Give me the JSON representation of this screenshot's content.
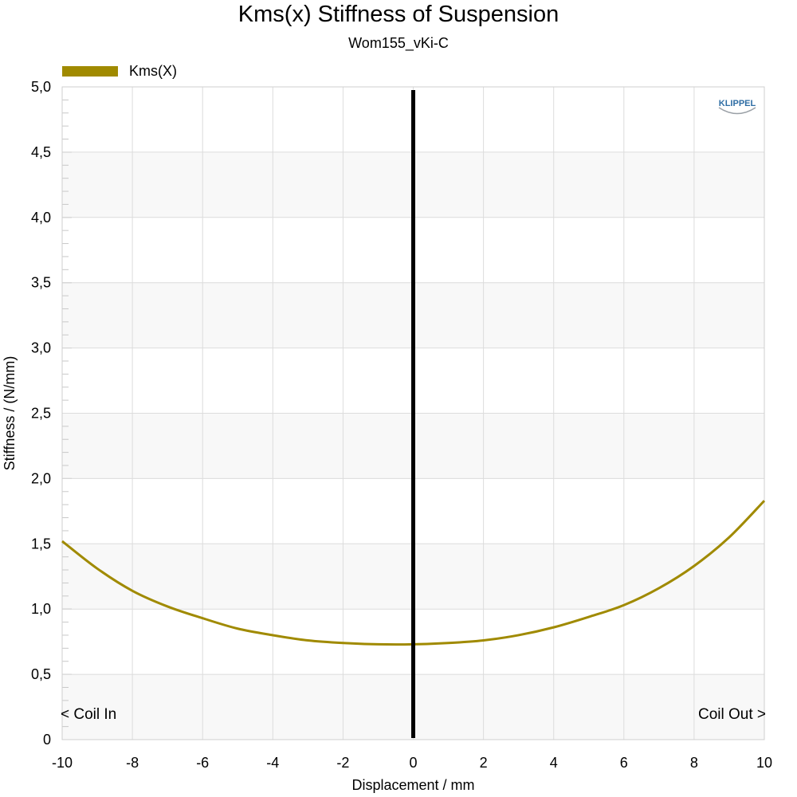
{
  "chart_data": {
    "type": "line",
    "title": "Kms(x) Stiffness of Suspension",
    "subtitle": "Wom155_vKi-C",
    "xlabel": "Displacement / mm",
    "ylabel": "Stiffness / (N/mm)",
    "xlim": [
      -10,
      10
    ],
    "ylim": [
      0,
      5
    ],
    "x_ticks": [
      -10,
      -8,
      -6,
      -4,
      -2,
      0,
      2,
      4,
      6,
      8,
      10
    ],
    "y_ticks": [
      "0",
      "0,5",
      "1,0",
      "1,5",
      "2,0",
      "2,5",
      "3,0",
      "3,5",
      "4,0",
      "4,5",
      "5,0"
    ],
    "grid": true,
    "legend_position": "top-left",
    "series": [
      {
        "name": "Kms(X)",
        "color": "#a08a00",
        "x": [
          -10,
          -9,
          -8,
          -7,
          -6,
          -5,
          -4,
          -3,
          -2,
          -1,
          0,
          1,
          2,
          3,
          4,
          5,
          6,
          7,
          8,
          9,
          10
        ],
        "y": [
          1.52,
          1.31,
          1.14,
          1.02,
          0.93,
          0.85,
          0.8,
          0.76,
          0.74,
          0.73,
          0.73,
          0.74,
          0.76,
          0.8,
          0.86,
          0.94,
          1.03,
          1.16,
          1.33,
          1.55,
          1.83
        ]
      }
    ],
    "marker_line": {
      "x": 0,
      "color": "#000000"
    },
    "annotations": {
      "left": "< Coil In",
      "right": "Coil Out >"
    },
    "logo_text": "KLIPPEL"
  }
}
